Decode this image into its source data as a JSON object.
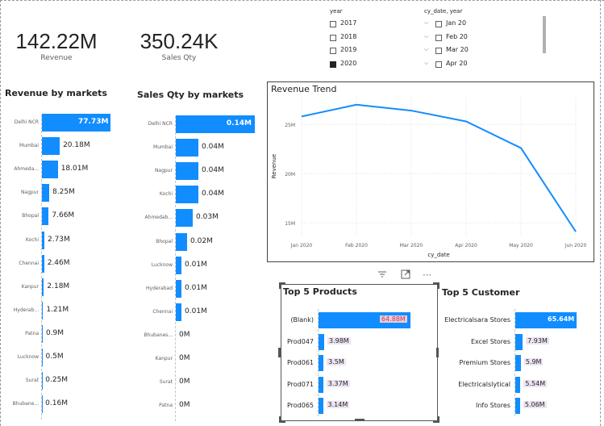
{
  "kpis": [
    {
      "value": "142.22M",
      "label": "Revenue"
    },
    {
      "value": "350.24K",
      "label": "Sales Qty"
    }
  ],
  "colors": {
    "bar": "#118DFF",
    "line": "#118DFF"
  },
  "slicers": {
    "year": {
      "title": "year",
      "items": [
        {
          "label": "2017",
          "checked": false
        },
        {
          "label": "2018",
          "checked": false
        },
        {
          "label": "2019",
          "checked": false
        },
        {
          "label": "2020",
          "checked": true
        }
      ]
    },
    "date": {
      "title": "cy_date, year",
      "items": [
        {
          "label": "Jan 20",
          "checked": false
        },
        {
          "label": "Feb 20",
          "checked": false
        },
        {
          "label": "Mar 20",
          "checked": false
        },
        {
          "label": "Apr 20",
          "checked": false
        }
      ]
    }
  },
  "revenue_by_markets": {
    "title": "Revenue by markets",
    "chart_data": {
      "type": "bar",
      "orientation": "horizontal",
      "title": "Revenue by markets",
      "categories": [
        "Delhi NCR",
        "Mumbai",
        "Ahmedabad",
        "Nagpur",
        "Bhopal",
        "Kochi",
        "Chennai",
        "Kanpur",
        "Hyderabad",
        "Patna",
        "Lucknow",
        "Surat",
        "Bhubaneshwar"
      ],
      "display_categories": [
        "Delhi NCR",
        "Mumbai",
        "Ahmeda...",
        "Nagpur",
        "Bhopal",
        "Kochi",
        "Chennai",
        "Kanpur",
        "Hyderab...",
        "Patna",
        "Lucknow",
        "Surat",
        "Bhubane..."
      ],
      "values": [
        77.73,
        20.18,
        18.01,
        8.25,
        7.66,
        2.73,
        2.46,
        2.18,
        1.21,
        0.9,
        0.5,
        0.25,
        0.16
      ],
      "labels": [
        "77.73M",
        "20.18M",
        "18.01M",
        "8.25M",
        "7.66M",
        "2.73M",
        "2.46M",
        "2.18M",
        "1.21M",
        "0.9M",
        "0.5M",
        "0.25M",
        "0.16M"
      ],
      "unit": "M",
      "xlim": [
        0,
        77.73
      ]
    }
  },
  "qty_by_markets": {
    "title": "Sales Qty by markets",
    "chart_data": {
      "type": "bar",
      "orientation": "horizontal",
      "title": "Sales Qty by markets",
      "categories": [
        "Delhi NCR",
        "Mumbai",
        "Nagpur",
        "Kochi",
        "Ahmedabad",
        "Bhopal",
        "Lucknow",
        "Hyderabad",
        "Chennai",
        "Bhubaneshwar",
        "Kanpur",
        "Surat",
        "Patna"
      ],
      "display_categories": [
        "Delhi NCR",
        "Mumbai",
        "Nagpur",
        "Kochi",
        "Ahmedab...",
        "Bhopal",
        "Lucknow",
        "Hyderabad",
        "Chennai",
        "Bhubanes...",
        "Kanpur",
        "Surat",
        "Patna"
      ],
      "values": [
        0.14,
        0.04,
        0.04,
        0.04,
        0.03,
        0.02,
        0.01,
        0.01,
        0.01,
        0,
        0,
        0,
        0
      ],
      "labels": [
        "0.14M",
        "0.04M",
        "0.04M",
        "0.04M",
        "0.03M",
        "0.02M",
        "0.01M",
        "0.01M",
        "0.01M",
        "0M",
        "0M",
        "0M",
        "0M"
      ],
      "unit": "M",
      "xlim": [
        0,
        0.14
      ]
    }
  },
  "revenue_trend": {
    "title": "Revenue Trend",
    "chart_data": {
      "type": "line",
      "title": "Revenue Trend",
      "xlabel": "cy_date",
      "ylabel": "Revenue",
      "x": [
        "Jan 2020",
        "Feb 2020",
        "Mar 2020",
        "Apr 2020",
        "May 2020",
        "Jun 2020"
      ],
      "yticks": [
        "25M",
        "20M",
        "15M"
      ],
      "ytick_values": [
        25,
        20,
        15
      ],
      "ylim": [
        13.7,
        27.8
      ],
      "series": [
        {
          "values": [
            25.8,
            27.0,
            26.4,
            25.3,
            22.6,
            14.1
          ]
        }
      ],
      "unit": "M",
      "grid": true
    }
  },
  "top_products": {
    "title": "Top 5 Products",
    "chart_data": {
      "type": "bar",
      "orientation": "horizontal",
      "title": "Top 5 Products",
      "categories": [
        "(Blank)",
        "Prod047",
        "Prod061",
        "Prod071",
        "Prod065"
      ],
      "values": [
        64.88,
        3.98,
        3.5,
        3.37,
        3.14
      ],
      "labels": [
        "64.88M",
        "3.98M",
        "3.5M",
        "3.37M",
        "3.14M"
      ],
      "unit": "M",
      "xlim": [
        0,
        64.88
      ]
    }
  },
  "top_customers": {
    "title": "Top 5 Customer",
    "chart_data": {
      "type": "bar",
      "orientation": "horizontal",
      "title": "Top 5 Customer",
      "categories": [
        "Electricalsara Stores",
        "Excel Stores",
        "Premium Stores",
        "Electricalslytical",
        "Info Stores"
      ],
      "values": [
        65.64,
        7.93,
        5.9,
        5.54,
        5.06
      ],
      "labels": [
        "65.64M",
        "7.93M",
        "5.9M",
        "5.54M",
        "5.06M"
      ],
      "unit": "M",
      "xlim": [
        0,
        65.64
      ]
    }
  },
  "toolbar": {
    "icons": [
      "filter-icon",
      "focus-mode-icon",
      "more-options-icon"
    ],
    "more_glyph": "⋯"
  }
}
